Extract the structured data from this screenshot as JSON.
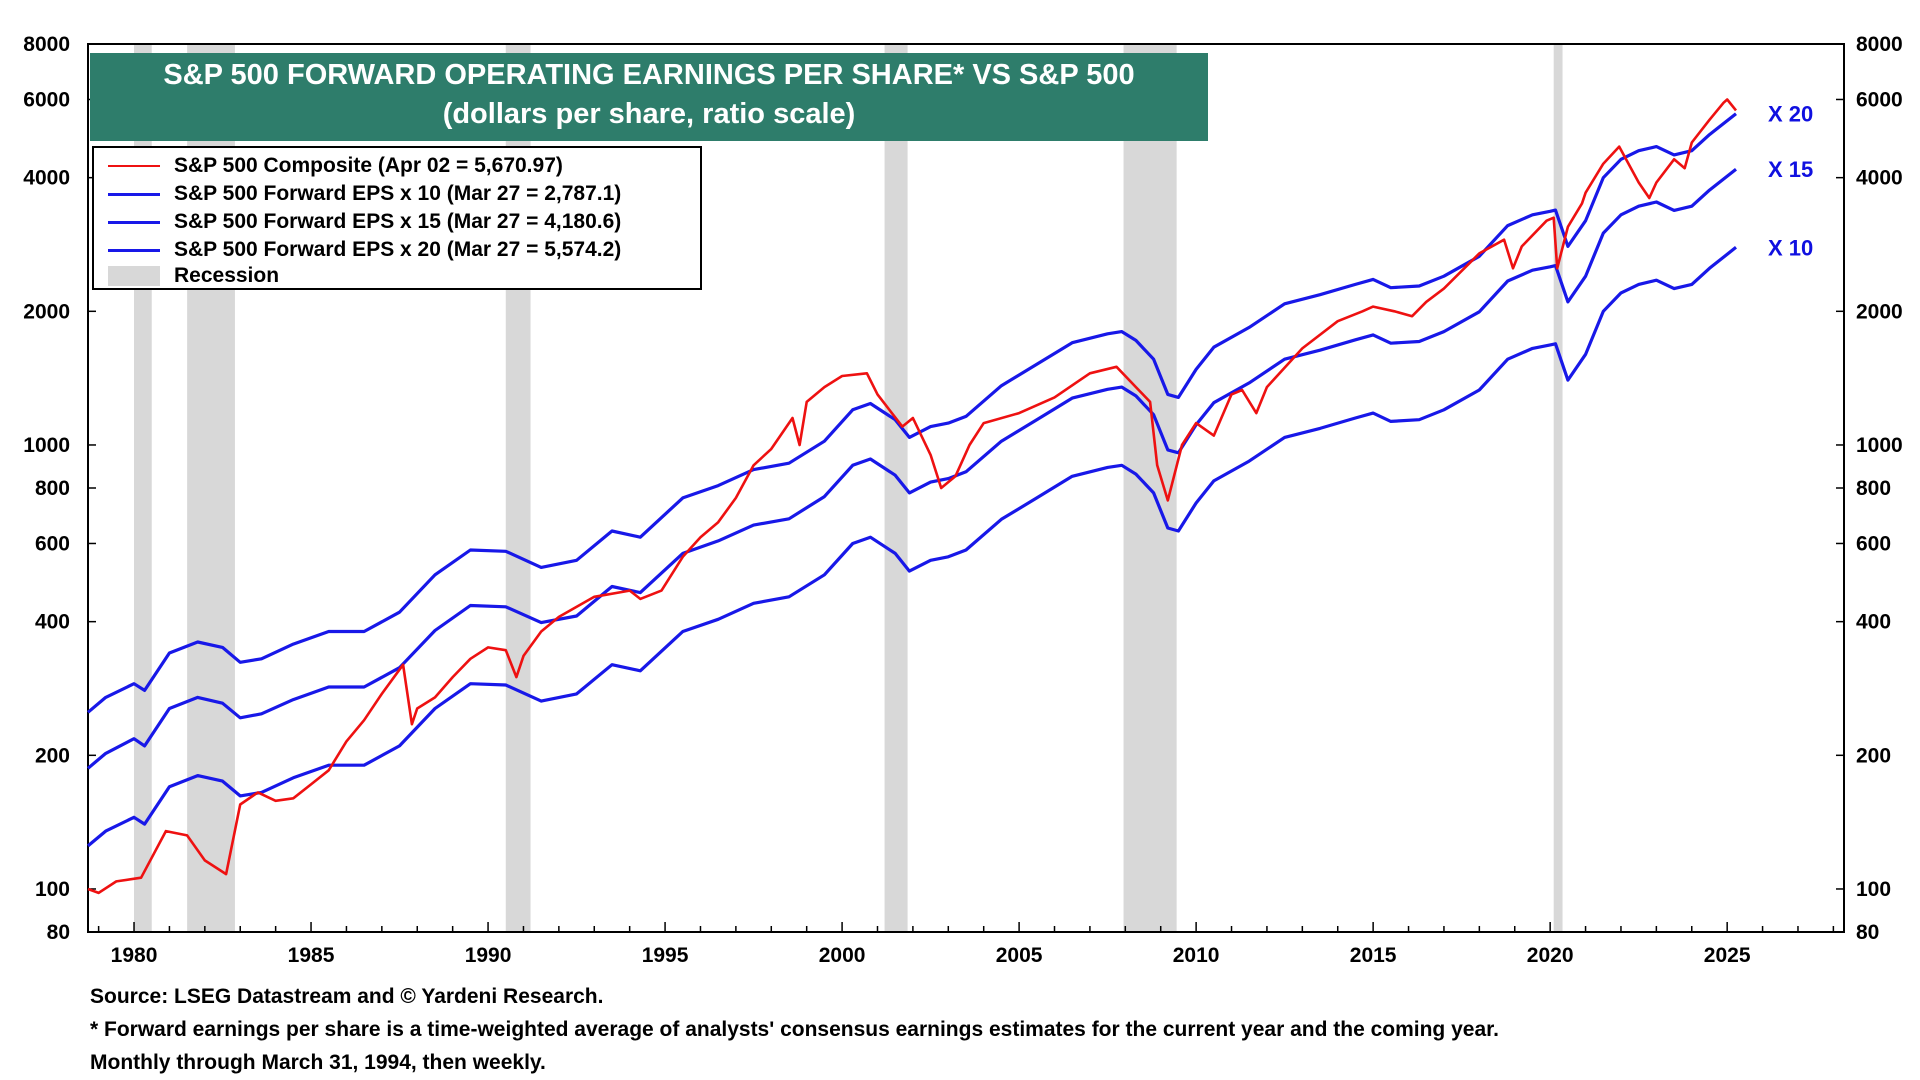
{
  "chart_data": {
    "type": "line",
    "title": "S&P 500 FORWARD OPERATING EARNINGS PER SHARE* VS S&P 500",
    "subtitle": "(dollars per share, ratio scale)",
    "y_scale": "log",
    "ylim": [
      80,
      8000
    ],
    "xlim": [
      1978.7,
      2028.3
    ],
    "y_ticks": [
      8000,
      6000,
      4000,
      2000,
      1000,
      800,
      600,
      400,
      200,
      100,
      80
    ],
    "y_tick_labels": [
      "8000",
      "6000",
      "4000",
      "2000",
      "1000",
      "800",
      "600",
      "400",
      "200",
      "100",
      "80"
    ],
    "x_ticks": [
      1980,
      1985,
      1990,
      1995,
      2000,
      2005,
      2010,
      2015,
      2020,
      2025
    ],
    "x_tick_labels": [
      "1980",
      "1985",
      "1990",
      "1995",
      "2000",
      "2005",
      "2010",
      "2015",
      "2020",
      "2025"
    ],
    "recessions": [
      [
        1980.0,
        1980.5
      ],
      [
        1981.5,
        1982.85
      ],
      [
        1990.5,
        1991.2
      ],
      [
        2001.2,
        2001.85
      ],
      [
        2007.95,
        2009.45
      ],
      [
        2020.1,
        2020.35
      ]
    ],
    "series": [
      {
        "name": "S&P 500 Composite",
        "legend": "S&P 500 Composite (Apr 02 = 5,670.97)",
        "color": "#ee1111",
        "x": [
          1978.7,
          1979.0,
          1979.5,
          1980.2,
          1980.9,
          1981.5,
          1982.0,
          1982.6,
          1983.0,
          1983.5,
          1984.0,
          1984.5,
          1985.0,
          1985.5,
          1986.0,
          1986.5,
          1987.0,
          1987.6,
          1987.85,
          1988.0,
          1988.5,
          1989.0,
          1989.5,
          1990.0,
          1990.5,
          1990.8,
          1991.0,
          1991.5,
          1992.0,
          1993.0,
          1994.0,
          1994.3,
          1994.9,
          1995.5,
          1996.0,
          1996.5,
          1997.0,
          1997.5,
          1998.0,
          1998.6,
          1998.8,
          1999.0,
          1999.5,
          2000.0,
          2000.7,
          2001.0,
          2001.7,
          2002.0,
          2002.5,
          2002.8,
          2003.2,
          2003.6,
          2004.0,
          2005.0,
          2006.0,
          2007.0,
          2007.75,
          2008.3,
          2008.7,
          2008.9,
          2009.2,
          2009.6,
          2010.0,
          2010.5,
          2011.0,
          2011.3,
          2011.7,
          2012.0,
          2013.0,
          2014.0,
          2014.7,
          2015.0,
          2015.6,
          2016.1,
          2016.5,
          2017.0,
          2018.0,
          2018.7,
          2018.95,
          2019.2,
          2019.9,
          2020.1,
          2020.2,
          2020.5,
          2020.9,
          2021.0,
          2021.5,
          2021.95,
          2022.5,
          2022.8,
          2023.0,
          2023.5,
          2023.8,
          2024.0,
          2024.5,
          2024.9,
          2025.0,
          2025.25
        ],
        "values": [
          100,
          98,
          104,
          106,
          135,
          132,
          116,
          108,
          155,
          165,
          158,
          160,
          172,
          185,
          215,
          240,
          275,
          320,
          235,
          255,
          270,
          300,
          330,
          350,
          345,
          300,
          335,
          380,
          410,
          455,
          470,
          450,
          470,
          560,
          620,
          670,
          760,
          900,
          980,
          1150,
          1000,
          1250,
          1350,
          1430,
          1450,
          1300,
          1100,
          1150,
          950,
          800,
          850,
          1000,
          1120,
          1180,
          1280,
          1450,
          1500,
          1350,
          1250,
          900,
          750,
          1000,
          1120,
          1050,
          1300,
          1330,
          1180,
          1350,
          1650,
          1900,
          2000,
          2050,
          2000,
          1950,
          2100,
          2250,
          2700,
          2900,
          2500,
          2800,
          3200,
          3250,
          2500,
          3100,
          3500,
          3700,
          4300,
          4700,
          3900,
          3600,
          3900,
          4400,
          4200,
          4800,
          5400,
          5900,
          6000,
          5670
        ]
      },
      {
        "name": "S&P 500 Forward EPS x 10",
        "legend": "S&P 500 Forward EPS x 10 (Mar 27 = 2,787.1)",
        "color": "#1818e8",
        "end_label": "X 10",
        "x": [
          1978.7,
          1979.2,
          1980.0,
          1980.3,
          1981.0,
          1981.8,
          1982.5,
          1983.0,
          1983.6,
          1984.5,
          1985.5,
          1986.5,
          1987.5,
          1988.5,
          1989.5,
          1990.5,
          1991.5,
          1992.5,
          1993.5,
          1994.3,
          1995.5,
          1996.5,
          1997.5,
          1998.5,
          1999.5,
          2000.3,
          2000.8,
          2001.5,
          2001.9,
          2002.5,
          2003.0,
          2003.5,
          2004.5,
          2005.5,
          2006.5,
          2007.5,
          2007.9,
          2008.3,
          2008.8,
          2009.2,
          2009.5,
          2010.0,
          2010.5,
          2011.5,
          2012.5,
          2013.5,
          2014.5,
          2015.0,
          2015.5,
          2016.3,
          2017.0,
          2018.0,
          2018.8,
          2019.5,
          2020.0,
          2020.15,
          2020.5,
          2021.0,
          2021.5,
          2022.0,
          2022.5,
          2023.0,
          2023.5,
          2024.0,
          2024.5,
          2025.25
        ],
        "values": [
          125,
          135,
          145,
          140,
          170,
          180,
          175,
          162,
          165,
          178,
          190,
          190,
          210,
          255,
          290,
          288,
          265,
          275,
          320,
          310,
          380,
          405,
          440,
          455,
          510,
          600,
          620,
          570,
          520,
          550,
          560,
          580,
          680,
          760,
          850,
          890,
          900,
          860,
          780,
          650,
          640,
          740,
          830,
          920,
          1040,
          1090,
          1150,
          1180,
          1130,
          1140,
          1200,
          1330,
          1560,
          1650,
          1680,
          1690,
          1400,
          1600,
          2000,
          2200,
          2300,
          2350,
          2250,
          2300,
          2500,
          2787
        ]
      },
      {
        "name": "S&P 500 Forward EPS x 15",
        "legend": "S&P 500 Forward EPS x 15 (Mar 27 = 4,180.6)",
        "color": "#1818e8",
        "end_label": "X 15",
        "x": [
          1978.7,
          1979.2,
          1980.0,
          1980.3,
          1981.0,
          1981.8,
          1982.5,
          1983.0,
          1983.6,
          1984.5,
          1985.5,
          1986.5,
          1987.5,
          1988.5,
          1989.5,
          1990.5,
          1991.5,
          1992.5,
          1993.5,
          1994.3,
          1995.5,
          1996.5,
          1997.5,
          1998.5,
          1999.5,
          2000.3,
          2000.8,
          2001.5,
          2001.9,
          2002.5,
          2003.0,
          2003.5,
          2004.5,
          2005.5,
          2006.5,
          2007.5,
          2007.9,
          2008.3,
          2008.8,
          2009.2,
          2009.5,
          2010.0,
          2010.5,
          2011.5,
          2012.5,
          2013.5,
          2014.5,
          2015.0,
          2015.5,
          2016.3,
          2017.0,
          2018.0,
          2018.8,
          2019.5,
          2020.0,
          2020.15,
          2020.5,
          2021.0,
          2021.5,
          2022.0,
          2022.5,
          2023.0,
          2023.5,
          2024.0,
          2024.5,
          2025.25
        ],
        "values": [
          187,
          202,
          218,
          210,
          255,
          270,
          262,
          243,
          248,
          267,
          285,
          285,
          315,
          382,
          435,
          432,
          398,
          412,
          480,
          465,
          570,
          608,
          660,
          682,
          765,
          900,
          930,
          855,
          780,
          825,
          840,
          870,
          1020,
          1140,
          1275,
          1335,
          1350,
          1290,
          1170,
          975,
          960,
          1110,
          1245,
          1380,
          1560,
          1635,
          1725,
          1770,
          1695,
          1710,
          1800,
          1995,
          2340,
          2475,
          2520,
          2535,
          2100,
          2400,
          3000,
          3300,
          3450,
          3525,
          3375,
          3450,
          3750,
          4180
        ]
      },
      {
        "name": "S&P 500 Forward EPS x 20",
        "legend": "S&P 500 Forward EPS x 20 (Mar 27 = 5,574.2)",
        "color": "#1818e8",
        "end_label": "X 20",
        "x": [
          1978.7,
          1979.2,
          1980.0,
          1980.3,
          1981.0,
          1981.8,
          1982.5,
          1983.0,
          1983.6,
          1984.5,
          1985.5,
          1986.5,
          1987.5,
          1988.5,
          1989.5,
          1990.5,
          1991.5,
          1992.5,
          1993.5,
          1994.3,
          1995.5,
          1996.5,
          1997.5,
          1998.5,
          1999.5,
          2000.3,
          2000.8,
          2001.5,
          2001.9,
          2002.5,
          2003.0,
          2003.5,
          2004.5,
          2005.5,
          2006.5,
          2007.5,
          2007.9,
          2008.3,
          2008.8,
          2009.2,
          2009.5,
          2010.0,
          2010.5,
          2011.5,
          2012.5,
          2013.5,
          2014.5,
          2015.0,
          2015.5,
          2016.3,
          2017.0,
          2018.0,
          2018.8,
          2019.5,
          2020.0,
          2020.15,
          2020.5,
          2021.0,
          2021.5,
          2022.0,
          2022.5,
          2023.0,
          2023.5,
          2024.0,
          2024.5,
          2025.25
        ],
        "values": [
          250,
          270,
          290,
          280,
          340,
          360,
          350,
          324,
          330,
          356,
          380,
          380,
          420,
          510,
          580,
          576,
          530,
          550,
          640,
          620,
          760,
          810,
          880,
          910,
          1020,
          1200,
          1240,
          1140,
          1040,
          1100,
          1120,
          1160,
          1360,
          1520,
          1700,
          1780,
          1800,
          1720,
          1560,
          1300,
          1280,
          1480,
          1660,
          1840,
          2080,
          2180,
          2300,
          2360,
          2260,
          2280,
          2400,
          2660,
          3120,
          3300,
          3360,
          3380,
          2800,
          3200,
          4000,
          4400,
          4600,
          4700,
          4500,
          4600,
          5000,
          5574
        ]
      }
    ],
    "legend_extra": "Recession",
    "legend_placement": "top-left"
  },
  "footer": {
    "source": "Source: LSEG Datastream and © Yardeni Research.",
    "note": "* Forward earnings per share is a time-weighted average of analysts' consensus earnings estimates for the current year and the coming year.",
    "frequency": "Monthly through March 31, 1994, then weekly."
  },
  "colors": {
    "title_bg": "#2e7d6b",
    "recession": "#d8d8d8",
    "composite": "#ee1111",
    "eps": "#1818e8"
  }
}
